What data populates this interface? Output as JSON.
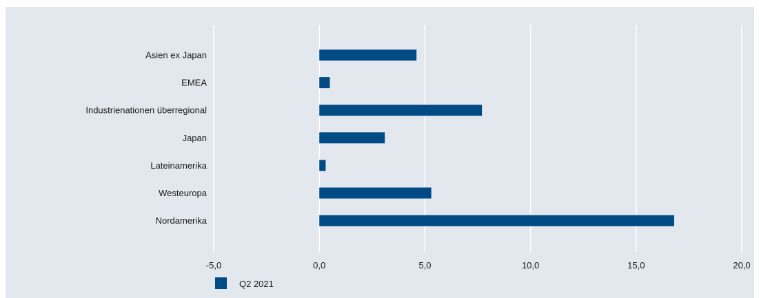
{
  "chart_data": {
    "type": "bar",
    "orientation": "horizontal",
    "categories": [
      "Asien ex Japan",
      "EMEA",
      "Industrienationen überregional",
      "Japan",
      "Lateinamerika",
      "Westeuropa",
      "Nordamerika"
    ],
    "series": [
      {
        "name": "Q2 2021",
        "values": [
          4.6,
          0.5,
          7.7,
          3.1,
          0.3,
          5.3,
          16.8
        ]
      }
    ],
    "xlim": [
      -5.0,
      20.0
    ],
    "xticks": [
      -5.0,
      0.0,
      5.0,
      10.0,
      15.0,
      20.0
    ],
    "xtick_labels": [
      "-5,0",
      "0,0",
      "5,0",
      "10,0",
      "15,0",
      "20,0"
    ],
    "grid": "vertical",
    "legend": "bottom-left",
    "colors": {
      "bar": "#004a85",
      "background": "#e3e8ef",
      "grid": "#ffffff"
    }
  }
}
